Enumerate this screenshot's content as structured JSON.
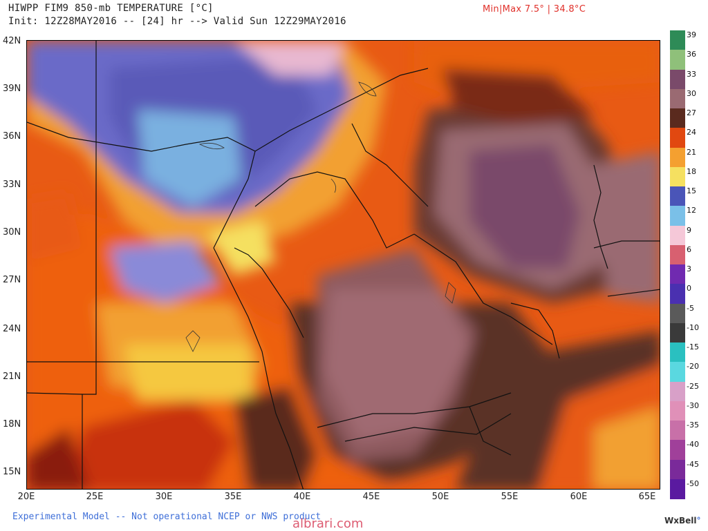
{
  "header": {
    "title": "HIWPP FIM9 850-mb TEMPERATURE [°C]",
    "init_line": "Init: 12Z28MAY2016 -- [24] hr --> Valid Sun 12Z29MAY2016",
    "minmax": "Min|Max 7.5° | 34.8°C"
  },
  "axes": {
    "lat_labels": [
      "42N",
      "39N",
      "36N",
      "33N",
      "30N",
      "27N",
      "24N",
      "21N",
      "18N",
      "15N"
    ],
    "lon_labels": [
      "20E",
      "25E",
      "30E",
      "35E",
      "40E",
      "45E",
      "50E",
      "55E",
      "60E",
      "65E"
    ]
  },
  "colorbar": {
    "labels": [
      "39",
      "36",
      "33",
      "30",
      "27",
      "24",
      "21",
      "18",
      "15",
      "12",
      "9",
      "6",
      "3",
      "0",
      "-5",
      "-10",
      "-15",
      "-20",
      "-25",
      "-30",
      "-35",
      "-40",
      "-45",
      "-50"
    ],
    "colors": [
      "#2e8b57",
      "#8fc07a",
      "#7a4a6a",
      "#9a6a72",
      "#5a2a1e",
      "#e14810",
      "#f4a030",
      "#f5e060",
      "#4a55b8",
      "#7ac0e8",
      "#f5c8d8",
      "#d86070",
      "#702ab0",
      "#4a30b0",
      "#5a5a5a",
      "#3a3a3a",
      "#2ac0c0",
      "#5ad8e0",
      "#d8a0c8",
      "#e090b8",
      "#c870a8",
      "#a0409a",
      "#7a2a9a",
      "#5a1aa0"
    ]
  },
  "footer": {
    "note": "Experimental Model -- Not operational NCEP or NWS product",
    "watermark": "albrari.com",
    "brand": "WxBell"
  }
}
